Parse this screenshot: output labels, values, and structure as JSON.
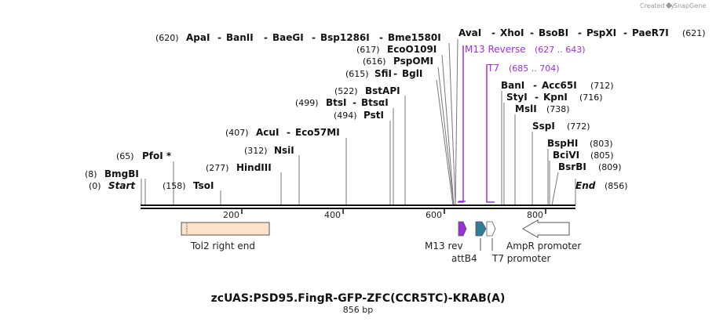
{
  "credit": {
    "prefix": "Created by",
    "brand": "SnapGene"
  },
  "map": {
    "title": "zcUAS:PSD95.FingR-GFP-ZFC(CCR5TC)-KRAB(A)",
    "length": "856 bp"
  },
  "ends": {
    "start_label": "Start",
    "start_pos": "(0)",
    "end_label": "End",
    "end_pos": "(856)"
  },
  "ticks": [
    "200",
    "400",
    "600",
    "800"
  ],
  "sites": {
    "bmgbi": {
      "pos": "(8)",
      "name": "BmgBI"
    },
    "pfoi": {
      "pos": "(65)",
      "name": "PfoI *"
    },
    "tsoi": {
      "pos": "(158)",
      "name": "TsoI"
    },
    "hindiii": {
      "pos": "(277)",
      "name": "HindIII"
    },
    "nsii": {
      "pos": "(312)",
      "name": "NsiI"
    },
    "acui": {
      "pos": "(407)",
      "names": [
        "AcuI",
        "Eco57MI"
      ]
    },
    "pstI": {
      "pos": "(494)",
      "name": "PstI"
    },
    "btsi": {
      "pos": "(499)",
      "names": [
        "BtsI",
        "BtsαI"
      ]
    },
    "bstapi": {
      "pos": "(522)",
      "name": "BstAPI"
    },
    "sfii": {
      "pos": "(615)",
      "names": [
        "SfiI",
        "BglI"
      ]
    },
    "pspomi": {
      "pos": "(616)",
      "name": "PspOMI"
    },
    "ecoo109i": {
      "pos": "(617)",
      "name": "EcoO109I"
    },
    "apai": {
      "pos": "(620)",
      "names": [
        "ApaI",
        "BanII",
        "BaeGI",
        "Bsp1286I",
        "Bme1580I"
      ]
    },
    "avai": {
      "pos": "(621)",
      "names": [
        "AvaI",
        "XhoI",
        "BsoBI",
        "PspXI",
        "PaeR7I"
      ]
    },
    "bani": {
      "pos": "(712)",
      "names": [
        "BanI",
        "Acc65I"
      ]
    },
    "styi": {
      "pos": "(716)",
      "names": [
        "StyI",
        "KpnI"
      ]
    },
    "msli": {
      "pos": "(738)",
      "name": "MslI"
    },
    "sspi": {
      "pos": "(772)",
      "name": "SspI"
    },
    "bsphi": {
      "pos": "(803)",
      "name": "BspHI"
    },
    "bcivi": {
      "pos": "(805)",
      "name": "BciVI"
    },
    "bsrbi": {
      "pos": "(809)",
      "name": "BsrBI"
    }
  },
  "primers": [
    {
      "name": "M13 Reverse",
      "range": "(627 .. 643)",
      "color": "#9b30d9"
    },
    {
      "name": "T7",
      "range": "(685 .. 704)",
      "color": "#9b30d9"
    }
  ],
  "features": {
    "tol2": {
      "name": "Tol2 right end",
      "color": "#fde3c8"
    },
    "m13rev": {
      "name": "M13 rev",
      "color": "#9b30d9"
    },
    "attb4": {
      "name": "attB4",
      "color": "#2e7d96"
    },
    "t7": {
      "name": "T7 promoter",
      "color": "#ffffff"
    },
    "ampr": {
      "name": "AmpR promoter",
      "color": "#ffffff"
    }
  }
}
